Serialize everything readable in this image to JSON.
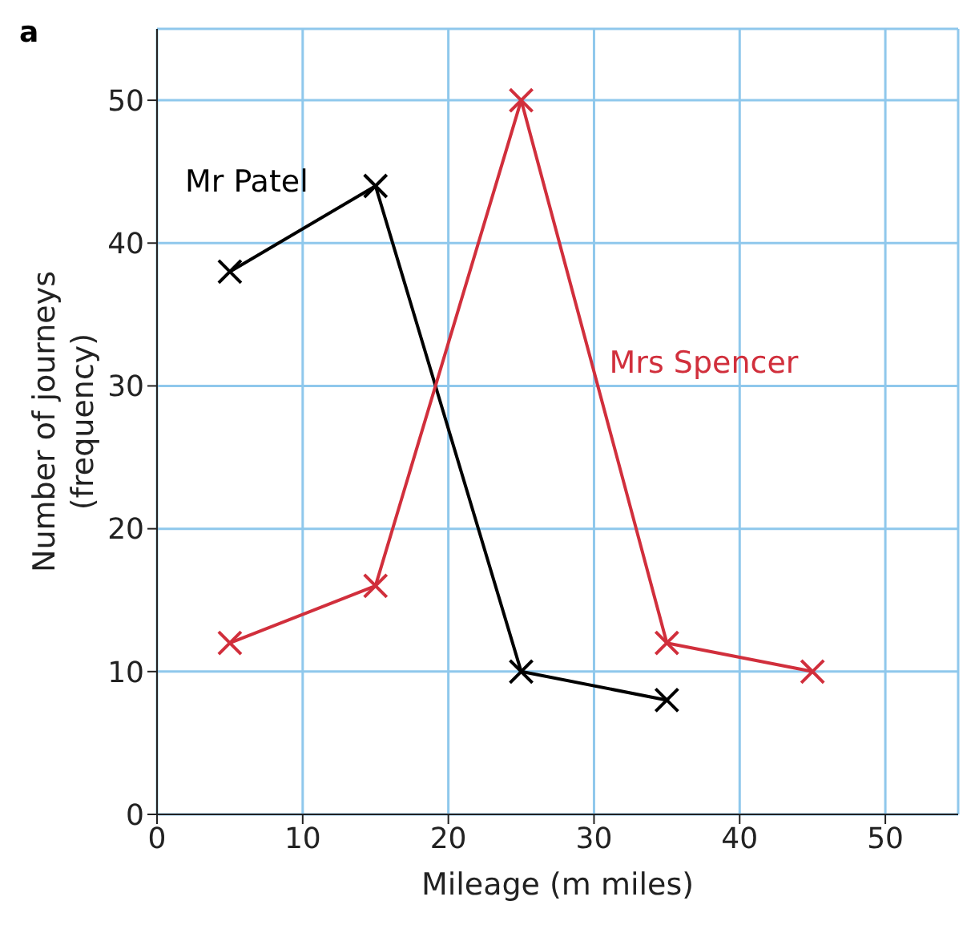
{
  "chart_data": {
    "type": "line",
    "title": "a",
    "xlabel": "Mileage (m miles)",
    "ylabel": "Number of journeys (frequency)",
    "series": [
      {
        "name": "Mr Patel",
        "color": "#000000",
        "x": [
          5,
          15,
          25,
          35
        ],
        "values": [
          38,
          44,
          10,
          8
        ]
      },
      {
        "name": "Mrs Spencer",
        "color": "#d12f3c",
        "x": [
          5,
          15,
          25,
          35,
          45
        ],
        "values": [
          12,
          16,
          50,
          12,
          10
        ]
      }
    ],
    "xlim": [
      0,
      55
    ],
    "ylim": [
      0,
      55
    ],
    "xticks": [
      0,
      10,
      20,
      30,
      40,
      50
    ],
    "yticks": [
      0,
      10,
      20,
      30,
      40,
      50
    ],
    "grid": true,
    "marker": "cross",
    "line_style": "solid"
  }
}
